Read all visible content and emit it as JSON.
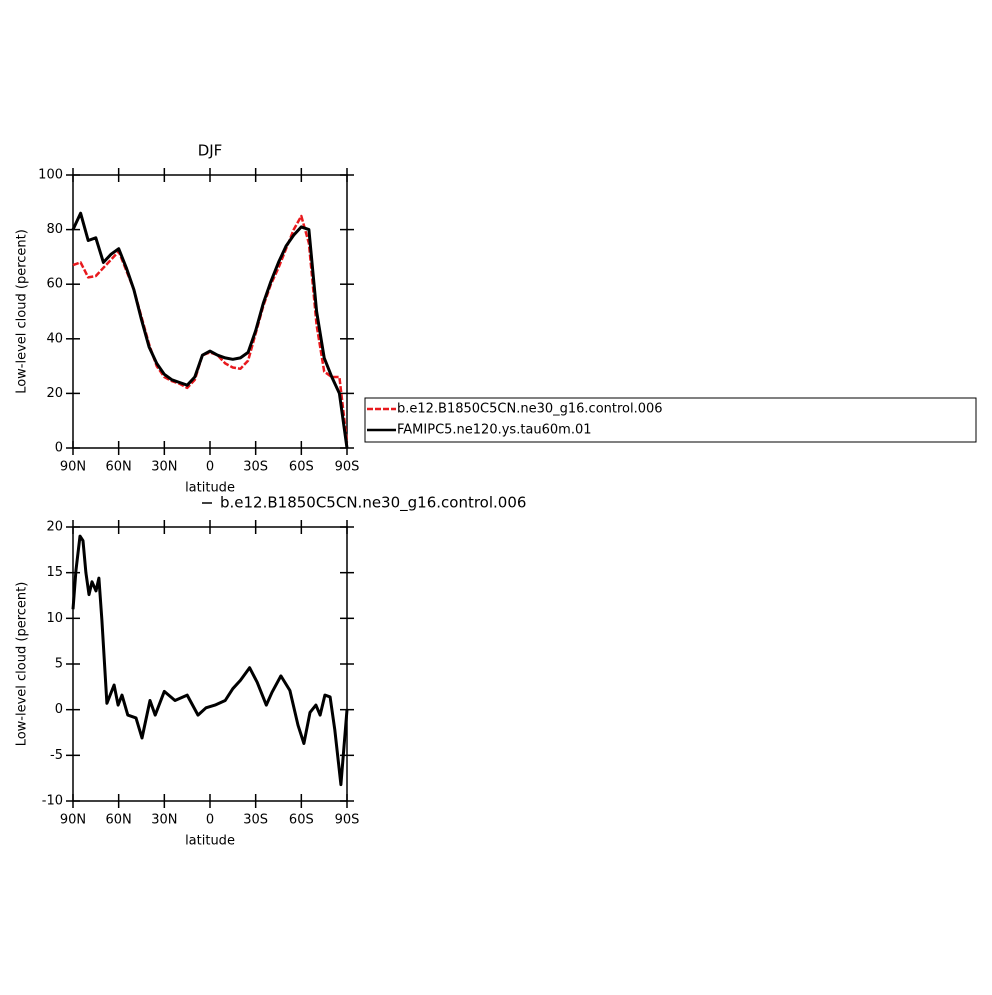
{
  "chart_data": [
    {
      "type": "line",
      "title": "DJF",
      "x_label": "latitude",
      "y_label": "Low-level cloud (percent)",
      "x": [
        90,
        85,
        80,
        75,
        70,
        65,
        60,
        55,
        50,
        45,
        40,
        35,
        30,
        25,
        20,
        15,
        10,
        5,
        0,
        -5,
        -10,
        -15,
        -20,
        -25,
        -30,
        -35,
        -40,
        -45,
        -50,
        -55,
        -60,
        -65,
        -70,
        -75,
        -80,
        -85,
        -90
      ],
      "series": [
        {
          "name": "b.e12.B1850C5CN.ne30_g16.control.006",
          "color": "#e8191d",
          "dashed": true,
          "values": [
            67,
            68,
            62.5,
            63,
            66,
            69,
            72,
            65,
            58,
            48,
            38,
            30,
            26,
            24.5,
            23.5,
            22,
            25,
            34,
            35,
            34,
            31,
            29.5,
            29,
            32,
            42,
            52,
            60,
            66,
            73,
            80,
            85,
            75,
            45,
            28,
            26,
            26,
            2
          ]
        },
        {
          "name": "FAMIPC5.ne120.ys.tau60m.01",
          "color": "#000000",
          "dashed": false,
          "values": [
            80,
            86,
            76,
            77,
            68,
            71,
            73,
            66,
            58,
            47,
            37,
            31,
            27,
            25,
            24,
            23,
            26,
            34,
            35.5,
            34,
            33,
            32.5,
            33,
            35,
            43,
            53,
            61,
            68,
            74,
            78,
            81,
            80,
            50,
            33,
            26,
            20,
            0
          ]
        }
      ],
      "xlim": [
        90,
        -90
      ],
      "xticks": [
        {
          "value": 90,
          "label": "90N"
        },
        {
          "value": 60,
          "label": "60N"
        },
        {
          "value": 30,
          "label": "30N"
        },
        0,
        {
          "value": -30,
          "label": "30S"
        },
        {
          "value": -60,
          "label": "60S"
        },
        {
          "value": -90,
          "label": "90S"
        }
      ],
      "ylim": [
        0,
        100
      ],
      "yticks": [
        0,
        20,
        40,
        60,
        80,
        100
      ],
      "legend": "right"
    },
    {
      "type": "line",
      "x_label": "latitude",
      "y_label": "Low-level cloud (percent)",
      "x": [
        90,
        88,
        85.4,
        83.4,
        81.5,
        79.5,
        77.5,
        74.9,
        73,
        71,
        67.7,
        63,
        60.4,
        57.8,
        54,
        48.6,
        44.7,
        39.4,
        36,
        30,
        23,
        15,
        7.9,
        2.6,
        -3.3,
        -10,
        -15,
        -20,
        -26,
        -31,
        -37,
        -40.7,
        -46.6,
        -52.5,
        -57.8,
        -61.7,
        -65.7,
        -69.6,
        -72.3,
        -75.5,
        -78.9,
        -82,
        -86,
        -90
      ],
      "series": [
        {
          "name": "b.e12.B1850C5CN.ne30_g16.control.006",
          "color": "#000000",
          "dashed": false,
          "values": [
            11,
            15.3,
            19,
            18.5,
            15,
            12.6,
            14,
            13,
            14.4,
            9.8,
            0.7,
            2.7,
            0.5,
            1.6,
            -0.6,
            -0.9,
            -3.1,
            1,
            -0.6,
            2,
            1,
            1.6,
            -0.6,
            0.2,
            0.5,
            1,
            2.3,
            3.2,
            4.6,
            3,
            0.5,
            1.9,
            3.7,
            2.1,
            -1.7,
            -3.7,
            -0.3,
            0.5,
            -0.6,
            1.6,
            1.4,
            -2.2,
            -8.2,
            0
          ]
        }
      ],
      "xlim": [
        90,
        -90
      ],
      "xticks": [
        {
          "value": 90,
          "label": "90N"
        },
        {
          "value": 60,
          "label": "60N"
        },
        {
          "value": 30,
          "label": "30N"
        },
        0,
        {
          "value": -30,
          "label": "30S"
        },
        {
          "value": -60,
          "label": "60S"
        },
        {
          "value": -90,
          "label": "90S"
        }
      ],
      "ylim": [
        -10,
        20
      ],
      "yticks": [
        -10,
        -5,
        0,
        5,
        10,
        15,
        20
      ],
      "legend": "top"
    }
  ]
}
